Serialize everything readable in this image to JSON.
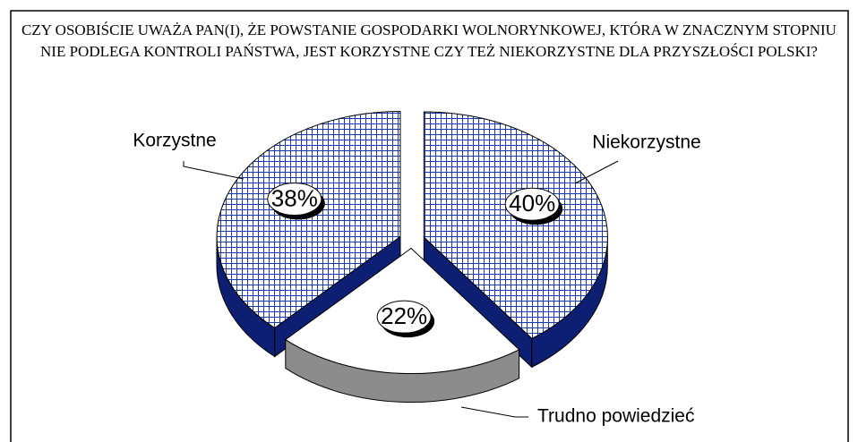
{
  "chart_data": {
    "type": "pie",
    "title": "CZY OSOBIŚCIE UWAŻA PAN(I), ŻE POWSTANIE GOSPODARKI WOLNORYNKOWEJ, KTÓRA W ZNACZNYM STOPNIU NIE PODLEGA KONTROLI PAŃSTWA, JEST KORZYSTNE CZY TEŻ NIEKORZYSTNE DLA PRZYSZŁOŚCI POLSKI?",
    "categories": [
      "Niekorzystne",
      "Trudno powiedzieć",
      "Korzystne"
    ],
    "values": [
      40,
      22,
      38
    ],
    "value_labels": [
      "40%",
      "22%",
      "38%"
    ],
    "colors": [
      "#1c3aa8",
      "#ffffff",
      "#1c3aa8"
    ],
    "side_colors": [
      "#0d1f73",
      "#8c8c8c",
      "#0d1f73"
    ],
    "patterns": [
      "crosshatch",
      "none",
      "crosshatch"
    ]
  }
}
